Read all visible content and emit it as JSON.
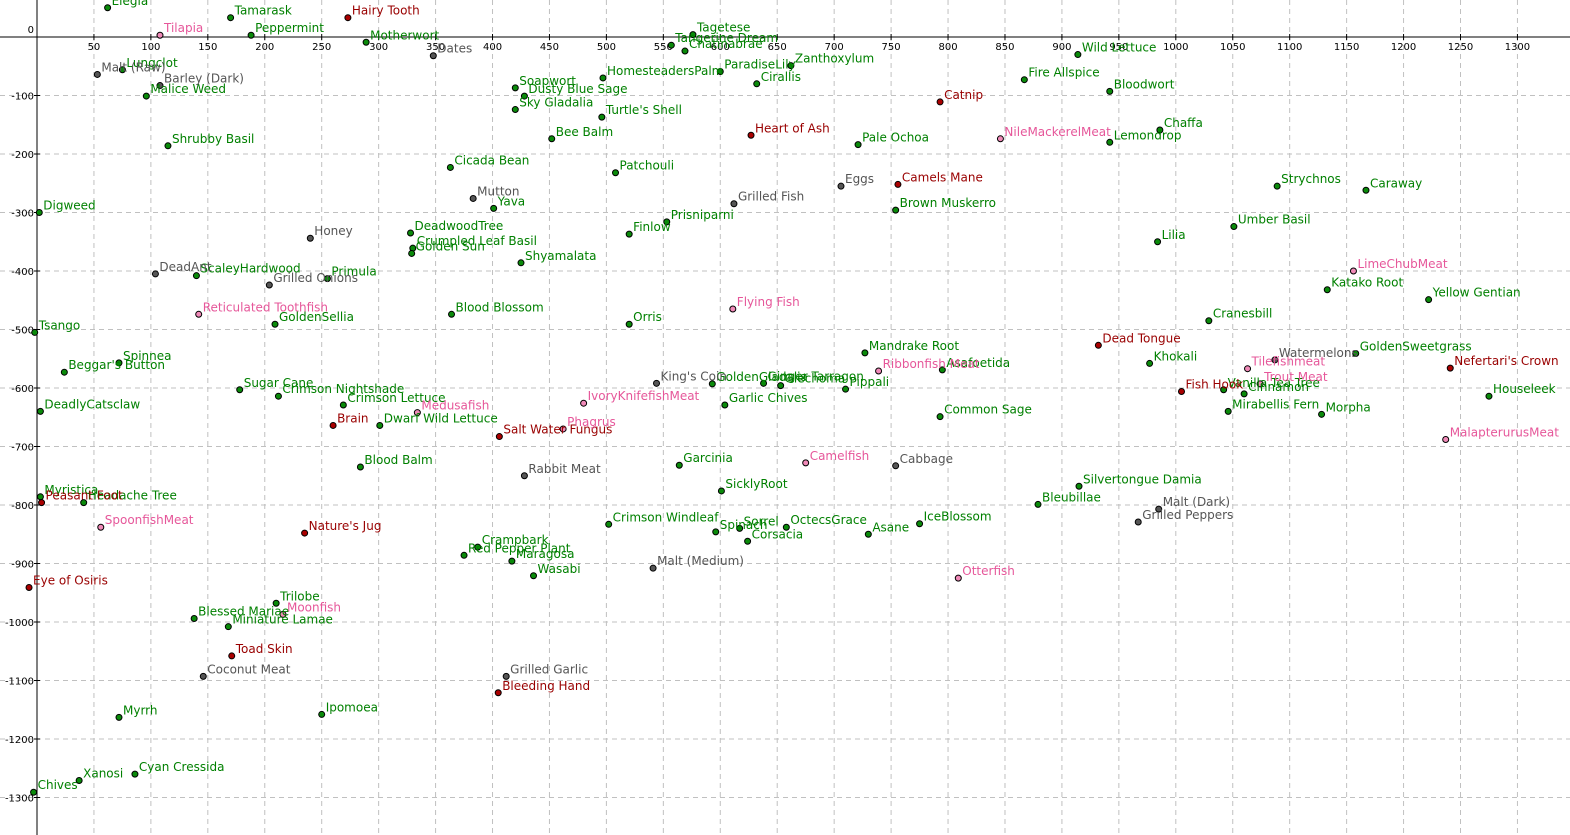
{
  "chart_data": {
    "type": "scatter",
    "title": "",
    "xlabel": "",
    "ylabel": "",
    "xlim": [
      -4,
      1365
    ],
    "ylim": [
      -1340,
      52
    ],
    "x_ticks": [
      50,
      100,
      150,
      200,
      250,
      300,
      350,
      400,
      450,
      500,
      550,
      600,
      650,
      700,
      750,
      800,
      850,
      900,
      950,
      1000,
      1050,
      1100,
      1150,
      1200,
      1250,
      1300
    ],
    "y_ticks": [
      0,
      -100,
      -200,
      -300,
      -400,
      -500,
      -600,
      -700,
      -800,
      -900,
      -1000,
      -1100,
      -1200,
      -1300
    ],
    "grid": true,
    "category_colors": {
      "herb": "#008000",
      "animal": "#990000",
      "fish": "#e6579a",
      "cooked": "#555555"
    },
    "series": [
      {
        "category": "herb",
        "points": [
          {
            "label": "Elegia",
            "x": 62,
            "y": 50
          },
          {
            "label": "Tamarask",
            "x": 170,
            "y": 33
          },
          {
            "label": "Peppermint",
            "x": 188,
            "y": 3
          },
          {
            "label": "Motherwort",
            "x": 289,
            "y": -9
          },
          {
            "label": "Tagetese",
            "x": 576,
            "y": 4
          },
          {
            "label": "Tangerine Dream",
            "x": 557,
            "y": -14
          },
          {
            "label": "Chatinabrae",
            "x": 569,
            "y": -24
          },
          {
            "label": "HomesteadersPalm",
            "x": 497,
            "y": -70
          },
          {
            "label": "ParadiseLily",
            "x": 600,
            "y": -59
          },
          {
            "label": "Zanthoxylum",
            "x": 662,
            "y": -49
          },
          {
            "label": "Cirallis",
            "x": 632,
            "y": -80
          },
          {
            "label": "Wild Lettuce",
            "x": 914,
            "y": -30
          },
          {
            "label": "Fire Allspice",
            "x": 867,
            "y": -73
          },
          {
            "label": "Bloodwort",
            "x": 942,
            "y": -93
          },
          {
            "label": "Lungclot",
            "x": 75,
            "y": -56
          },
          {
            "label": "Malice Weed",
            "x": 96,
            "y": -101
          },
          {
            "label": "Shrubby Basil",
            "x": 115,
            "y": -186
          },
          {
            "label": "Soapwort",
            "x": 420,
            "y": -87
          },
          {
            "label": "Dusty Blue Sage",
            "x": 428,
            "y": -101
          },
          {
            "label": "Sky Gladalia",
            "x": 420,
            "y": -124
          },
          {
            "label": "Turtle's Shell",
            "x": 496,
            "y": -137
          },
          {
            "label": "Bee Balm",
            "x": 452,
            "y": -174
          },
          {
            "label": "Cicada Bean",
            "x": 363,
            "y": -223
          },
          {
            "label": "Patchouli",
            "x": 508,
            "y": -232
          },
          {
            "label": "Pale Ochoa",
            "x": 721,
            "y": -184
          },
          {
            "label": "Chaffa",
            "x": 986,
            "y": -159
          },
          {
            "label": "Lemondrop",
            "x": 942,
            "y": -180
          },
          {
            "label": "Strychnos",
            "x": 1089,
            "y": -255
          },
          {
            "label": "Caraway",
            "x": 1167,
            "y": -262
          },
          {
            "label": "Digweed",
            "x": 2,
            "y": -300
          },
          {
            "label": "Yava",
            "x": 401,
            "y": -293
          },
          {
            "label": "Prisniparni",
            "x": 553,
            "y": -316
          },
          {
            "label": "Brown Muskerro",
            "x": 754,
            "y": -296
          },
          {
            "label": "Umber Basil",
            "x": 1051,
            "y": -324
          },
          {
            "label": "DeadwoodTree",
            "x": 328,
            "y": -335
          },
          {
            "label": "Finlow",
            "x": 520,
            "y": -337
          },
          {
            "label": "Crumpled Leaf Basil",
            "x": 330,
            "y": -361
          },
          {
            "label": "Lilia",
            "x": 984,
            "y": -350
          },
          {
            "label": "Golden Sun",
            "x": 329,
            "y": -370
          },
          {
            "label": "Shyamalata",
            "x": 425,
            "y": -386
          },
          {
            "label": "ScaleyHardwood",
            "x": 140,
            "y": -408
          },
          {
            "label": "Primula",
            "x": 255,
            "y": -413
          },
          {
            "label": "Katako Root",
            "x": 1133,
            "y": -432
          },
          {
            "label": "Yellow Gentian",
            "x": 1222,
            "y": -449
          },
          {
            "label": "Blood Blossom",
            "x": 364,
            "y": -474
          },
          {
            "label": "Orris",
            "x": 520,
            "y": -491
          },
          {
            "label": "GoldenSellia",
            "x": 209,
            "y": -491
          },
          {
            "label": "Cranesbill",
            "x": 1029,
            "y": -485
          },
          {
            "label": "Tsango",
            "x": -2,
            "y": -505
          },
          {
            "label": "Mandrake Root",
            "x": 727,
            "y": -540
          },
          {
            "label": "GoldenSweetgrass",
            "x": 1158,
            "y": -541
          },
          {
            "label": "Spinnea",
            "x": 72,
            "y": -557
          },
          {
            "label": "Khokali",
            "x": 977,
            "y": -558
          },
          {
            "label": "Beggar's Button",
            "x": 24,
            "y": -573
          },
          {
            "label": "Asafoetida",
            "x": 795,
            "y": -569
          },
          {
            "label": "GoldenGladalia",
            "x": 593,
            "y": -593
          },
          {
            "label": "Ginger Tarragon",
            "x": 638,
            "y": -592
          },
          {
            "label": "Glechoma",
            "x": 653,
            "y": -596
          },
          {
            "label": "Pippali",
            "x": 710,
            "y": -602
          },
          {
            "label": "Sugar Cane",
            "x": 178,
            "y": -603
          },
          {
            "label": "Vanilla Tea Tree",
            "x": 1042,
            "y": -603
          },
          {
            "label": "Cinnamon",
            "x": 1060,
            "y": -610
          },
          {
            "label": "Houseleek",
            "x": 1275,
            "y": -614
          },
          {
            "label": "Crimson Nightshade",
            "x": 212,
            "y": -614
          },
          {
            "label": "DeadlyCatsclaw",
            "x": 3,
            "y": -640
          },
          {
            "label": "Crimson Lettuce",
            "x": 269,
            "y": -629
          },
          {
            "label": "Garlic Chives",
            "x": 604,
            "y": -629
          },
          {
            "label": "Mirabellis Fern",
            "x": 1046,
            "y": -640
          },
          {
            "label": "Morpha",
            "x": 1128,
            "y": -645
          },
          {
            "label": "Common Sage",
            "x": 793,
            "y": -649
          },
          {
            "label": "Dwarf Wild Lettuce",
            "x": 301,
            "y": -664
          },
          {
            "label": "Garcinia",
            "x": 564,
            "y": -732
          },
          {
            "label": "Blood Balm",
            "x": 284,
            "y": -735
          },
          {
            "label": "SicklyRoot",
            "x": 601,
            "y": -776
          },
          {
            "label": "Silvertongue Damia",
            "x": 915,
            "y": -768
          },
          {
            "label": "Myristica",
            "x": 3,
            "y": -786
          },
          {
            "label": "Headache Tree",
            "x": 41,
            "y": -796
          },
          {
            "label": "Bleubillae",
            "x": 879,
            "y": -799
          },
          {
            "label": "Crimson Windleaf",
            "x": 502,
            "y": -833
          },
          {
            "label": "IceBlossom",
            "x": 775,
            "y": -832
          },
          {
            "label": "Sorrel",
            "x": 617,
            "y": -840
          },
          {
            "label": "OctecsGrace",
            "x": 658,
            "y": -838
          },
          {
            "label": "Spinach",
            "x": 596,
            "y": -846
          },
          {
            "label": "Asane",
            "x": 730,
            "y": -850
          },
          {
            "label": "Corsacia",
            "x": 624,
            "y": -862
          },
          {
            "label": "Crampbark",
            "x": 387,
            "y": -872
          },
          {
            "label": "Red Pepper Plant",
            "x": 375,
            "y": -886
          },
          {
            "label": "Maragosa",
            "x": 417,
            "y": -896
          },
          {
            "label": "Wasabi",
            "x": 436,
            "y": -921
          },
          {
            "label": "Trilobe",
            "x": 210,
            "y": -968
          },
          {
            "label": "Blessed Mariae",
            "x": 138,
            "y": -994
          },
          {
            "label": "Miniature Lamae",
            "x": 168,
            "y": -1008
          },
          {
            "label": "Myrrh",
            "x": 72,
            "y": -1163
          },
          {
            "label": "Ipomoea",
            "x": 250,
            "y": -1158
          },
          {
            "label": "Cyan Cressida",
            "x": 86,
            "y": -1260
          },
          {
            "label": "Xanosi",
            "x": 37,
            "y": -1271
          },
          {
            "label": "Chives",
            "x": -3,
            "y": -1291
          }
        ]
      },
      {
        "category": "animal",
        "points": [
          {
            "label": "Hairy Tooth",
            "x": 273,
            "y": 33
          },
          {
            "label": "Catnip",
            "x": 793,
            "y": -111
          },
          {
            "label": "Heart of Ash",
            "x": 627,
            "y": -168
          },
          {
            "label": "Camels Mane",
            "x": 756,
            "y": -252
          },
          {
            "label": "Dead Tongue",
            "x": 932,
            "y": -527
          },
          {
            "label": "Nefertari's Crown",
            "x": 1241,
            "y": -566
          },
          {
            "label": "Fish Hook",
            "x": 1005,
            "y": -606
          },
          {
            "label": "Brain",
            "x": 260,
            "y": -664
          },
          {
            "label": "Salt Water Fungus",
            "x": 406,
            "y": -683
          },
          {
            "label": "Peasant Foot",
            "x": 4,
            "y": -796
          },
          {
            "label": "Nature's Jug",
            "x": 235,
            "y": -848
          },
          {
            "label": "Eye of Osiris",
            "x": -7,
            "y": -941
          },
          {
            "label": "Toad Skin",
            "x": 171,
            "y": -1058
          },
          {
            "label": "Bleeding Hand",
            "x": 405,
            "y": -1121
          }
        ]
      },
      {
        "category": "fish",
        "points": [
          {
            "label": "Tilapia",
            "x": 108,
            "y": 3
          },
          {
            "label": "NileMackerelMeat",
            "x": 846,
            "y": -174
          },
          {
            "label": "LimeChubMeat",
            "x": 1156,
            "y": -400
          },
          {
            "label": "Reticulated Toothfish",
            "x": 142,
            "y": -474
          },
          {
            "label": "Flying Fish",
            "x": 611,
            "y": -465
          },
          {
            "label": "Ribbonfish Meat",
            "x": 739,
            "y": -571
          },
          {
            "label": "Tilefishmeat",
            "x": 1063,
            "y": -567
          },
          {
            "label": "Trout Meat",
            "x": 1074,
            "y": -593
          },
          {
            "label": "IvoryKnifefishMeat",
            "x": 480,
            "y": -626
          },
          {
            "label": "Medusafish",
            "x": 334,
            "y": -642
          },
          {
            "label": "Phagrus",
            "x": 462,
            "y": -670
          },
          {
            "label": "MalapterurusMeat",
            "x": 1237,
            "y": -688
          },
          {
            "label": "Camelfish",
            "x": 675,
            "y": -728
          },
          {
            "label": "SpoonfishMeat",
            "x": 56,
            "y": -838
          },
          {
            "label": "Otterfish",
            "x": 809,
            "y": -925
          },
          {
            "label": "Moonfish",
            "x": 216,
            "y": -987
          }
        ]
      },
      {
        "category": "cooked",
        "points": [
          {
            "label": "Dates",
            "x": 348,
            "y": -32
          },
          {
            "label": "Malt (Raw)",
            "x": 53,
            "y": -64
          },
          {
            "label": "Barley (Dark)",
            "x": 108,
            "y": -83
          },
          {
            "label": "Eggs",
            "x": 706,
            "y": -255
          },
          {
            "label": "Mutton",
            "x": 383,
            "y": -276
          },
          {
            "label": "Grilled Fish",
            "x": 612,
            "y": -285
          },
          {
            "label": "Honey",
            "x": 240,
            "y": -344
          },
          {
            "label": "DeadAnt",
            "x": 104,
            "y": -405
          },
          {
            "label": "Grilled Onions",
            "x": 204,
            "y": -424
          },
          {
            "label": "Watermelons",
            "x": 1087,
            "y": -552
          },
          {
            "label": "King's Coin",
            "x": 544,
            "y": -592
          },
          {
            "label": "Rabbit Meat",
            "x": 428,
            "y": -750
          },
          {
            "label": "Cabbage",
            "x": 754,
            "y": -733
          },
          {
            "label": "Malt (Dark)",
            "x": 985,
            "y": -807
          },
          {
            "label": "Grilled Peppers",
            "x": 967,
            "y": -829
          },
          {
            "label": "Malt (Medium)",
            "x": 541,
            "y": -908
          },
          {
            "label": "Grilled Garlic",
            "x": 412,
            "y": -1093
          },
          {
            "label": "Coconut Meat",
            "x": 146,
            "y": -1093
          }
        ]
      }
    ]
  }
}
